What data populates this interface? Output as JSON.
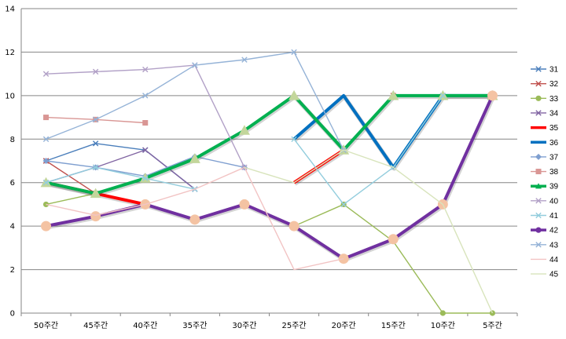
{
  "chart_data": {
    "type": "line",
    "title": "",
    "xlabel": "",
    "ylabel": "",
    "categories": [
      "50주간",
      "45주간",
      "40주간",
      "35주간",
      "30주간",
      "25주간",
      "20주간",
      "15주간",
      "10주간",
      "5주간"
    ],
    "ylim": [
      0,
      14
    ],
    "yticks": [
      0,
      2,
      4,
      6,
      8,
      10,
      12,
      14
    ],
    "grid": "horizontal",
    "legend_position": "right",
    "series": [
      {
        "name": "31",
        "color": "#4A7EBB",
        "marker": "x",
        "thick": false,
        "values": [
          7,
          7.8,
          7.5,
          5.7,
          null,
          null,
          null,
          null,
          null,
          null
        ]
      },
      {
        "name": "32",
        "color": "#C0504D",
        "marker": "x",
        "thick": false,
        "values": [
          7,
          5.5,
          5,
          null,
          null,
          null,
          7.5,
          10,
          10,
          10
        ]
      },
      {
        "name": "33",
        "color": "#9BBB59",
        "marker": "circle",
        "thick": false,
        "values": [
          5,
          5.5,
          5,
          null,
          null,
          4,
          5,
          3.3,
          0,
          0
        ]
      },
      {
        "name": "34",
        "color": "#8064A2",
        "marker": "x",
        "thick": false,
        "values": [
          6,
          6.7,
          7.5,
          5.7,
          null,
          null,
          null,
          null,
          null,
          null
        ]
      },
      {
        "name": "35",
        "color": "#FF0000",
        "marker": "none",
        "thick": true,
        "values": [
          6,
          5.5,
          5,
          null,
          null,
          6,
          7.5,
          null,
          null,
          null
        ]
      },
      {
        "name": "36",
        "color": "#0070C0",
        "marker": "none",
        "thick": true,
        "values": [
          null,
          null,
          null,
          null,
          null,
          8,
          10,
          6.7,
          10,
          10
        ]
      },
      {
        "name": "37",
        "color": "#7F9FD0",
        "marker": "diamond",
        "thick": false,
        "values": [
          7,
          6.7,
          6.3,
          7.2,
          6.7,
          null,
          null,
          null,
          null,
          null
        ]
      },
      {
        "name": "38",
        "color": "#D99694",
        "marker": "square",
        "thick": false,
        "values": [
          9,
          8.9,
          8.75,
          null,
          null,
          null,
          null,
          null,
          null,
          null
        ]
      },
      {
        "name": "39",
        "color": "#00B050",
        "marker": "triangle",
        "thick": true,
        "values": [
          6,
          5.5,
          6.2,
          7.1,
          8.4,
          10,
          7.5,
          10,
          10,
          10
        ]
      },
      {
        "name": "40",
        "color": "#B2A1C7",
        "marker": "x",
        "thick": false,
        "values": [
          11,
          11.1,
          11.2,
          11.4,
          6.7,
          null,
          null,
          null,
          null,
          null
        ]
      },
      {
        "name": "41",
        "color": "#93CDDD",
        "marker": "x",
        "thick": false,
        "values": [
          6,
          6.7,
          6.2,
          5.7,
          null,
          8,
          5,
          6.7,
          10,
          null
        ]
      },
      {
        "name": "42",
        "color": "#7030A0",
        "marker": "circle",
        "thick": true,
        "values": [
          4,
          4.45,
          5,
          4.3,
          5,
          4,
          2.5,
          3.4,
          5,
          10
        ]
      },
      {
        "name": "43",
        "color": "#95B3D7",
        "marker": "x",
        "thick": false,
        "values": [
          8,
          8.9,
          10,
          11.4,
          11.65,
          12,
          7.5,
          null,
          null,
          null
        ]
      },
      {
        "name": "44",
        "color": "#F2C4C4",
        "marker": "none",
        "thick": false,
        "values": [
          5,
          4.5,
          5,
          5.7,
          6.7,
          2,
          2.5,
          null,
          null,
          null
        ]
      },
      {
        "name": "45",
        "color": "#D8E4BC",
        "marker": "none",
        "thick": false,
        "values": [
          null,
          null,
          null,
          null,
          6.7,
          6,
          7.5,
          6.7,
          5,
          0
        ]
      }
    ]
  }
}
